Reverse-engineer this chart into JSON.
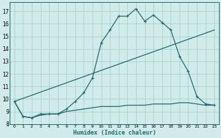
{
  "xlabel": "Humidex (Indice chaleur)",
  "xlim": [
    -0.5,
    23.5
  ],
  "ylim": [
    8.0,
    17.7
  ],
  "xticks": [
    0,
    1,
    2,
    3,
    4,
    5,
    6,
    7,
    8,
    9,
    10,
    11,
    12,
    13,
    14,
    15,
    16,
    17,
    18,
    19,
    20,
    21,
    22,
    23
  ],
  "yticks": [
    8,
    9,
    10,
    11,
    12,
    13,
    14,
    15,
    16,
    17
  ],
  "background_color": "#d1ebeb",
  "grid_color": "#aacfcf",
  "line_color": "#1a6b6b",
  "series1_x": [
    0,
    1,
    2,
    3,
    4,
    5,
    6,
    7,
    8,
    9,
    10,
    11,
    12,
    13,
    14,
    15,
    16,
    17,
    18,
    19,
    20,
    21,
    22,
    23
  ],
  "series1_y": [
    9.8,
    8.6,
    8.5,
    8.8,
    8.8,
    8.8,
    9.2,
    9.8,
    10.5,
    11.7,
    14.5,
    15.5,
    16.6,
    16.6,
    17.2,
    16.2,
    16.7,
    16.1,
    15.5,
    13.4,
    12.2,
    10.2,
    9.6,
    9.5
  ],
  "series2_x": [
    0,
    23
  ],
  "series2_y": [
    9.8,
    15.5
  ],
  "series3_x": [
    0,
    1,
    2,
    3,
    4,
    5,
    6,
    7,
    8,
    9,
    10,
    11,
    12,
    13,
    14,
    15,
    16,
    17,
    18,
    19,
    20,
    21,
    22,
    23
  ],
  "series3_y": [
    9.8,
    8.6,
    8.5,
    8.7,
    8.8,
    8.8,
    9.0,
    9.1,
    9.2,
    9.3,
    9.4,
    9.4,
    9.4,
    9.5,
    9.5,
    9.5,
    9.6,
    9.6,
    9.6,
    9.7,
    9.7,
    9.6,
    9.5,
    9.5
  ]
}
